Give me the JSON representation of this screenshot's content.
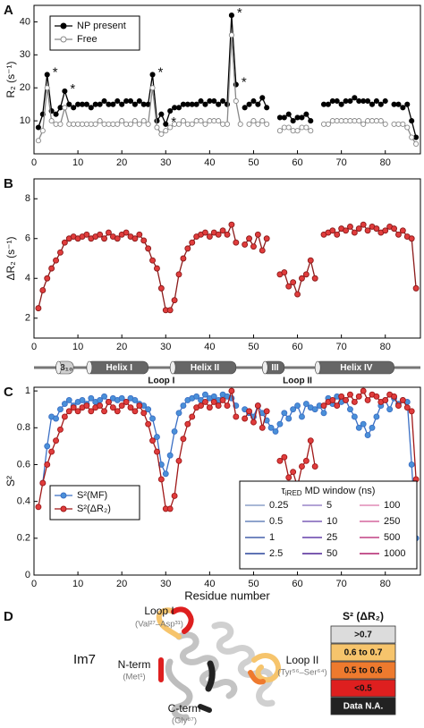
{
  "chart_data": [
    {
      "type": "line",
      "panel": "A",
      "y_label": "R₂ (s⁻¹)",
      "xlim": [
        0,
        88
      ],
      "ylim": [
        0,
        45
      ],
      "xticks": [
        0,
        10,
        20,
        30,
        40,
        50,
        60,
        70,
        80
      ],
      "yticks": [
        10,
        20,
        30,
        40
      ],
      "legend": "upper left",
      "x": [
        1,
        2,
        3,
        4,
        5,
        6,
        7,
        8,
        9,
        10,
        11,
        12,
        13,
        14,
        15,
        16,
        17,
        18,
        19,
        20,
        21,
        22,
        23,
        24,
        25,
        26,
        27,
        28,
        29,
        30,
        31,
        32,
        33,
        34,
        35,
        36,
        37,
        38,
        39,
        40,
        41,
        42,
        43,
        44,
        45,
        46,
        47,
        48,
        49,
        50,
        51,
        52,
        53,
        54,
        55,
        56,
        57,
        58,
        59,
        60,
        61,
        62,
        63,
        64,
        65,
        66,
        67,
        68,
        69,
        70,
        71,
        72,
        73,
        74,
        75,
        76,
        77,
        78,
        79,
        80,
        81,
        82,
        83,
        84,
        85,
        86,
        87
      ],
      "series": [
        {
          "name": "NP present",
          "color": "#000000",
          "fill": "#000000",
          "values": [
            8,
            12,
            24,
            13,
            12,
            14,
            19,
            15,
            14,
            15,
            15,
            15,
            14,
            15,
            15,
            16,
            15,
            15,
            16,
            15,
            16,
            16,
            15,
            16,
            15,
            15,
            24,
            10,
            12,
            9,
            13,
            14,
            14,
            15,
            15,
            15,
            15,
            16,
            15,
            16,
            16,
            15,
            16,
            15,
            42,
            21,
            null,
            14,
            15,
            16,
            15,
            17,
            14,
            null,
            null,
            11,
            11,
            12,
            10,
            11,
            11,
            12,
            10,
            null,
            null,
            15,
            15,
            16,
            16,
            15,
            16,
            16,
            17,
            16,
            16,
            16,
            15,
            16,
            15,
            16,
            null,
            15,
            15,
            14,
            15,
            10,
            5
          ]
        },
        {
          "name": "Free",
          "color": "#888888",
          "fill": "#ffffff",
          "values": [
            4,
            7,
            20,
            10,
            9,
            9,
            14,
            9,
            9,
            9,
            9,
            9,
            9,
            9,
            10,
            9,
            9,
            9,
            9,
            10,
            9,
            9,
            10,
            9,
            10,
            9,
            20,
            8,
            6,
            7,
            8,
            9,
            9,
            10,
            9,
            9,
            10,
            10,
            9,
            10,
            10,
            10,
            9,
            9,
            36,
            16,
            9,
            null,
            9,
            10,
            9,
            10,
            9,
            null,
            null,
            7,
            8,
            8,
            7,
            7,
            8,
            8,
            7,
            null,
            null,
            9,
            9,
            10,
            10,
            10,
            10,
            10,
            10,
            10,
            9,
            10,
            10,
            10,
            10,
            9,
            null,
            9,
            9,
            9,
            8,
            5,
            3
          ]
        }
      ],
      "annotations": [
        {
          "text": "*",
          "x": 3
        },
        {
          "text": "*",
          "x": 7
        },
        {
          "text": "*",
          "x": 27
        },
        {
          "text": "*",
          "x": 30
        },
        {
          "text": "*",
          "x": 45
        },
        {
          "text": "*",
          "x": 46
        }
      ]
    },
    {
      "type": "line",
      "panel": "B",
      "y_label": "ΔR₂ (s⁻¹)",
      "xlim": [
        0,
        88
      ],
      "ylim": [
        1,
        9
      ],
      "xticks": [
        0,
        10,
        20,
        30,
        40,
        50,
        60,
        70,
        80
      ],
      "yticks": [
        2,
        4,
        6,
        8
      ],
      "x": [
        1,
        2,
        3,
        4,
        5,
        6,
        7,
        8,
        9,
        10,
        11,
        12,
        13,
        14,
        15,
        16,
        17,
        18,
        19,
        20,
        21,
        22,
        23,
        24,
        25,
        26,
        27,
        28,
        29,
        30,
        31,
        32,
        33,
        34,
        35,
        36,
        37,
        38,
        39,
        40,
        41,
        42,
        43,
        44,
        45,
        46,
        47,
        48,
        49,
        50,
        51,
        52,
        53,
        54,
        55,
        56,
        57,
        58,
        59,
        60,
        61,
        62,
        63,
        64,
        65,
        66,
        67,
        68,
        69,
        70,
        71,
        72,
        73,
        74,
        75,
        76,
        77,
        78,
        79,
        80,
        81,
        82,
        83,
        84,
        85,
        86,
        87
      ],
      "series": [
        {
          "color": "#8b1a1a",
          "fill": "#e03c3c",
          "values": [
            2.5,
            3.4,
            4.0,
            4.5,
            4.9,
            5.3,
            5.8,
            6.0,
            6.1,
            6.0,
            6.1,
            6.2,
            6.0,
            6.1,
            6.2,
            6.0,
            6.3,
            6.1,
            6.0,
            6.2,
            6.3,
            6.1,
            6.0,
            6.2,
            5.9,
            5.5,
            4.9,
            4.5,
            3.5,
            2.4,
            2.4,
            2.9,
            4.2,
            5.0,
            5.5,
            5.8,
            6.1,
            6.2,
            6.3,
            6.1,
            6.3,
            6.2,
            6.4,
            6.2,
            6.7,
            5.8,
            null,
            5.7,
            6.0,
            5.6,
            6.2,
            5.4,
            6.0,
            null,
            null,
            4.2,
            4.3,
            3.6,
            3.8,
            3.2,
            4.0,
            4.2,
            4.9,
            4.0,
            null,
            6.2,
            6.3,
            6.4,
            6.2,
            6.5,
            6.4,
            6.6,
            6.3,
            6.5,
            6.7,
            6.4,
            6.6,
            6.5,
            6.3,
            6.4,
            6.6,
            6.5,
            6.2,
            6.4,
            6.1,
            6.0,
            3.5
          ]
        }
      ]
    },
    {
      "type": "line",
      "panel": "C",
      "y_label": "S²",
      "x_label": "Residue number",
      "xlim": [
        0,
        88
      ],
      "ylim": [
        0,
        1.02
      ],
      "xticks": [
        0,
        10,
        20,
        30,
        40,
        50,
        60,
        70,
        80
      ],
      "yticks": [
        0,
        0.2,
        0.4,
        0.6,
        0.8,
        1
      ],
      "legend": "lower left",
      "x": [
        1,
        2,
        3,
        4,
        5,
        6,
        7,
        8,
        9,
        10,
        11,
        12,
        13,
        14,
        15,
        16,
        17,
        18,
        19,
        20,
        21,
        22,
        23,
        24,
        25,
        26,
        27,
        28,
        29,
        30,
        31,
        32,
        33,
        34,
        35,
        36,
        37,
        38,
        39,
        40,
        41,
        42,
        43,
        44,
        45,
        46,
        47,
        48,
        49,
        50,
        51,
        52,
        53,
        54,
        55,
        56,
        57,
        58,
        59,
        60,
        61,
        62,
        63,
        64,
        65,
        66,
        67,
        68,
        69,
        70,
        71,
        72,
        73,
        74,
        75,
        76,
        77,
        78,
        79,
        80,
        81,
        82,
        83,
        84,
        85,
        86,
        87
      ],
      "series": [
        {
          "name": "S²(MF)",
          "color": "#3b6fc4",
          "fill": "#4a90d9",
          "values": [
            null,
            0.5,
            0.7,
            0.86,
            0.85,
            0.9,
            0.93,
            0.95,
            0.92,
            0.94,
            0.95,
            0.93,
            0.96,
            0.94,
            0.95,
            0.97,
            0.94,
            0.96,
            0.95,
            0.96,
            0.94,
            0.96,
            0.95,
            0.93,
            0.92,
            0.9,
            0.85,
            0.75,
            0.6,
            0.55,
            0.65,
            0.78,
            0.88,
            0.92,
            0.95,
            0.96,
            0.97,
            0.95,
            0.98,
            0.96,
            0.97,
            0.95,
            0.98,
            0.97,
            0.96,
            0.92,
            null,
            0.9,
            0.88,
            0.86,
            0.92,
            0.88,
            0.84,
            0.8,
            0.78,
            0.82,
            0.88,
            0.85,
            0.9,
            0.92,
            0.86,
            0.93,
            0.91,
            0.9,
            0.92,
            0.88,
            0.96,
            0.93,
            0.97,
            0.94,
            0.95,
            0.9,
            0.86,
            0.8,
            0.82,
            0.76,
            0.8,
            0.86,
            0.92,
            0.95,
            0.9,
            0.96,
            0.93,
            0.95,
            0.94,
            0.6,
            0.2
          ]
        },
        {
          "name": "S²(ΔR₂)",
          "color": "#a01818",
          "fill": "#e03c3c",
          "values": [
            0.37,
            0.5,
            0.6,
            0.67,
            0.73,
            0.79,
            0.86,
            0.89,
            0.91,
            0.89,
            0.91,
            0.92,
            0.89,
            0.91,
            0.92,
            0.89,
            0.94,
            0.91,
            0.89,
            0.92,
            0.94,
            0.91,
            0.89,
            0.92,
            0.88,
            0.82,
            0.73,
            0.67,
            0.52,
            0.36,
            0.36,
            0.43,
            0.62,
            0.74,
            0.82,
            0.86,
            0.91,
            0.92,
            0.94,
            0.91,
            0.94,
            0.92,
            0.95,
            0.92,
            1.0,
            0.86,
            null,
            0.85,
            0.89,
            0.83,
            0.92,
            0.8,
            0.89,
            null,
            null,
            0.62,
            0.64,
            0.53,
            0.56,
            0.48,
            0.59,
            0.62,
            0.73,
            0.59,
            null,
            0.92,
            0.94,
            0.95,
            0.92,
            0.97,
            0.95,
            0.98,
            0.94,
            0.97,
            1.0,
            0.95,
            0.98,
            0.97,
            0.94,
            0.95,
            0.98,
            0.97,
            0.92,
            0.95,
            0.91,
            0.89,
            0.52
          ]
        }
      ],
      "tau_legend": {
        "title": [
          "τ",
          "iRED",
          " MD window (ns)"
        ],
        "entries": [
          {
            "name": "0.25",
            "color": "#a9b8d6"
          },
          {
            "name": "0.5",
            "color": "#8ea3cc"
          },
          {
            "name": "1",
            "color": "#7388c0"
          },
          {
            "name": "2.5",
            "color": "#5f73b4"
          },
          {
            "name": "5",
            "color": "#b3a3d6"
          },
          {
            "name": "10",
            "color": "#9c86c9"
          },
          {
            "name": "25",
            "color": "#8a6fbf"
          },
          {
            "name": "50",
            "color": "#7a5ab0"
          },
          {
            "name": "100",
            "color": "#e8a8c8"
          },
          {
            "name": "250",
            "color": "#df8cb6"
          },
          {
            "name": "500",
            "color": "#d070a2"
          },
          {
            "name": "1000",
            "color": "#c45890"
          }
        ]
      }
    }
  ],
  "topology": {
    "helices": [
      {
        "label": "3₁₀",
        "start": 5,
        "end": 9,
        "color": "#cfcfcf"
      },
      {
        "label": "Helix I",
        "start": 12,
        "end": 26,
        "color": "#666666"
      },
      {
        "label": "Helix II",
        "start": 31,
        "end": 46,
        "color": "#666666"
      },
      {
        "label": "III",
        "start": 52,
        "end": 57,
        "color": "#666666"
      },
      {
        "label": "Helix IV",
        "start": 64,
        "end": 82,
        "color": "#666666"
      }
    ],
    "loops": [
      {
        "label": "Loop I",
        "start": 27,
        "end": 31
      },
      {
        "label": "Loop II",
        "start": 56,
        "end": 64
      }
    ]
  },
  "panel_d": {
    "panel": "D",
    "protein": "Im7",
    "loop1": "Loop I",
    "loop1_res": "(Val²⁷–Asp³¹)",
    "nterm": "N-term",
    "nterm_res": "(Met¹)",
    "cterm": "C-term",
    "cterm_res": "(Gly⁸⁷)",
    "loop2": "Loop II",
    "loop2_res": "(Tyr⁵⁶–Ser⁶⁴)",
    "legend_title": "S² (ΔR₂)",
    "legend": [
      {
        "label": ">0.7",
        "color": "#dcdcdc"
      },
      {
        "label": "0.6 to 0.7",
        "color": "#f6c46c"
      },
      {
        "label": "0.5 to 0.6",
        "color": "#ee7a2e"
      },
      {
        "label": "<0.5",
        "color": "#de1f1f"
      },
      {
        "label": "Data N.A.",
        "color": "#222222"
      }
    ]
  }
}
